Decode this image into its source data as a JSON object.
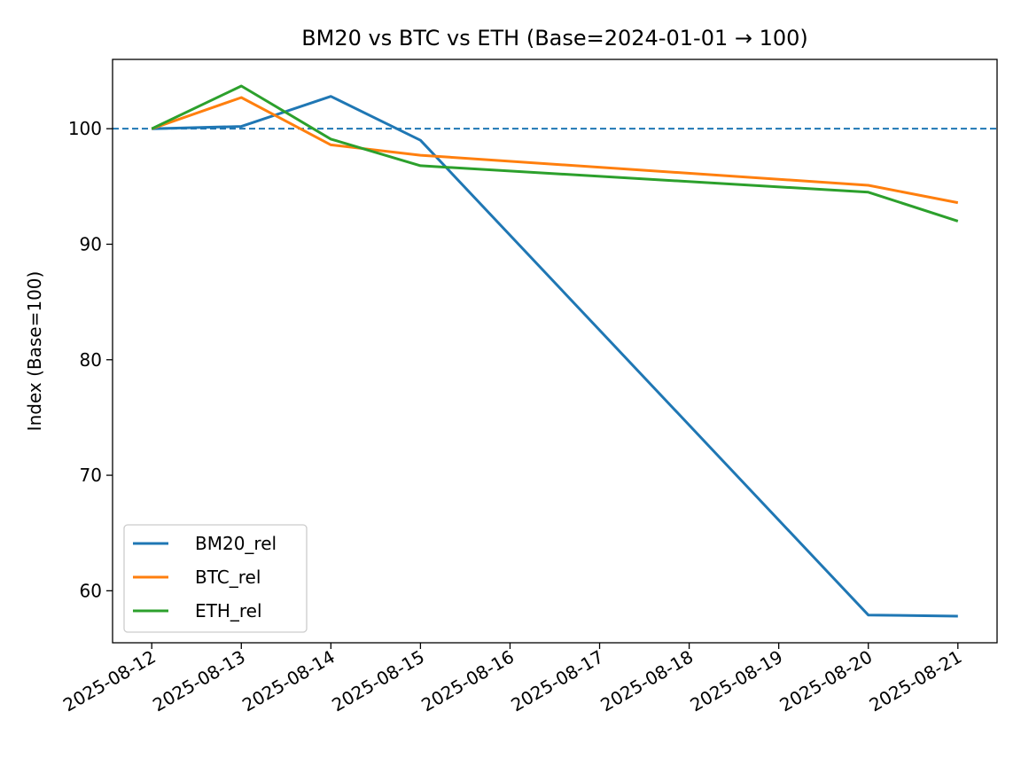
{
  "chart_data": {
    "type": "line",
    "title": "BM20 vs BTC vs ETH (Base=2024-01-01 → 100)",
    "xlabel": "",
    "ylabel": "Index (Base=100)",
    "x": [
      "2025-08-12",
      "2025-08-13",
      "2025-08-14",
      "2025-08-15",
      "2025-08-20",
      "2025-08-21"
    ],
    "xticks": [
      "2025-08-12",
      "2025-08-13",
      "2025-08-14",
      "2025-08-15",
      "2025-08-16",
      "2025-08-17",
      "2025-08-18",
      "2025-08-19",
      "2025-08-20",
      "2025-08-21"
    ],
    "xlim": [
      "2025-08-11T13:30",
      "2025-08-21T10:30"
    ],
    "yticks": [
      60,
      70,
      80,
      90,
      100
    ],
    "ylim": [
      55.5,
      106
    ],
    "baseline": {
      "value": 100,
      "style": "dashed",
      "color": "#1f77b4"
    },
    "series": [
      {
        "name": "BM20_rel",
        "color": "#1f77b4",
        "values": [
          100,
          100.2,
          102.8,
          99.0,
          57.9,
          57.8
        ]
      },
      {
        "name": "BTC_rel",
        "color": "#ff7f0e",
        "values": [
          100,
          102.7,
          98.6,
          97.7,
          95.1,
          93.6
        ]
      },
      {
        "name": "ETH_rel",
        "color": "#2ca02c",
        "values": [
          100,
          103.7,
          99.1,
          96.8,
          94.5,
          92.0
        ]
      }
    ],
    "legend": "lower-left",
    "grid": false
  }
}
